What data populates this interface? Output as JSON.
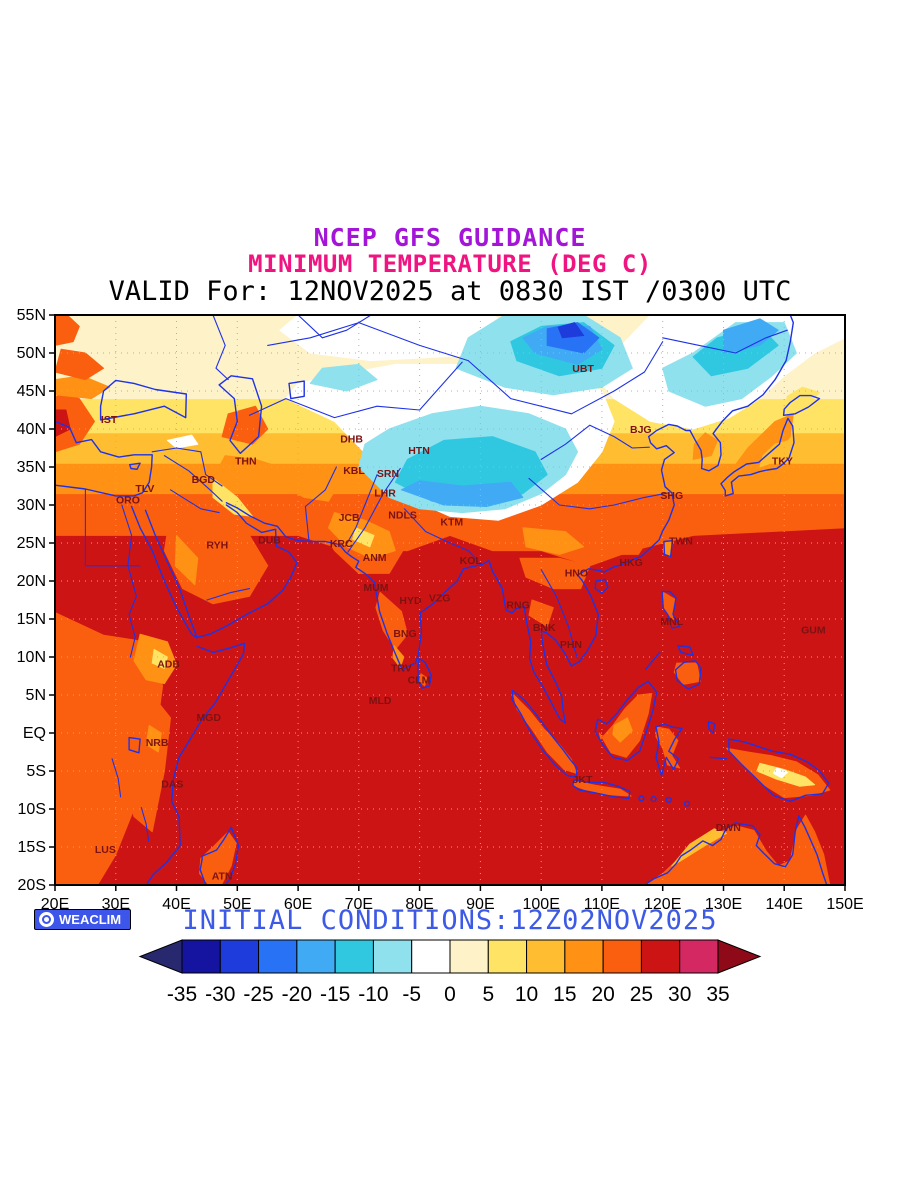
{
  "titles": {
    "line1": "NCEP GFS GUIDANCE",
    "line2": "MINIMUM TEMPERATURE (DEG C)",
    "line3": "VALID For: 12NOV2025 at 0830 IST /0300 UTC"
  },
  "colors": {
    "title1": "#a316d8",
    "title2": "#ef1480",
    "title3": "#000000",
    "initial_conditions": "#3c5ae6",
    "coastline": "#1e32e6",
    "grid": "#b0b0b0",
    "station_label": "#7d1212",
    "axis_label": "#000000",
    "frame": "#000000",
    "badge_bg": "#3d55e8"
  },
  "axes": {
    "lat_labels": [
      "55N",
      "50N",
      "45N",
      "40N",
      "35N",
      "30N",
      "25N",
      "20N",
      "15N",
      "10N",
      "5N",
      "EQ",
      "5S",
      "10S",
      "15S",
      "20S"
    ],
    "lat_values": [
      55,
      50,
      45,
      40,
      35,
      30,
      25,
      20,
      15,
      10,
      5,
      0,
      -5,
      -10,
      -15,
      -20
    ],
    "lon_labels": [
      "20E",
      "30E",
      "40E",
      "50E",
      "60E",
      "70E",
      "80E",
      "90E",
      "100E",
      "110E",
      "120E",
      "130E",
      "140E",
      "150E"
    ],
    "lon_values": [
      20,
      30,
      40,
      50,
      60,
      70,
      80,
      90,
      100,
      110,
      120,
      130,
      140,
      150
    ],
    "lon_range": [
      20,
      150
    ],
    "lat_range": [
      -20,
      55
    ]
  },
  "colorbar": {
    "tick_labels": [
      "-35",
      "-30",
      "-25",
      "-20",
      "-15",
      "-10",
      "-5",
      "0",
      "5",
      "10",
      "15",
      "20",
      "25",
      "30",
      "35"
    ],
    "segments": [
      "#28286e",
      "#1414a0",
      "#1e3cdc",
      "#2873f5",
      "#41aaf5",
      "#30c8e1",
      "#8fe1ee",
      "#ffffff",
      "#fdf2c8",
      "#ffe364",
      "#ffbe32",
      "#ff9114",
      "#fa5f0f",
      "#cd1414",
      "#d42862",
      "#8f0a19"
    ]
  },
  "branding": {
    "logo_text": "WEACLIM"
  },
  "footer": {
    "initial_conditions": "INITIAL CONDITIONS:12Z02NOV2025"
  },
  "stations": [
    {
      "label": "IST",
      "lon": 28.9,
      "lat": 41.2
    },
    {
      "label": "THN",
      "lon": 51.4,
      "lat": 35.7
    },
    {
      "label": "TLV",
      "lon": 34.8,
      "lat": 32.1
    },
    {
      "label": "BGD",
      "lon": 44.4,
      "lat": 33.3
    },
    {
      "label": "ORO",
      "lon": 32.0,
      "lat": 30.6
    },
    {
      "label": "RYH",
      "lon": 46.7,
      "lat": 24.7
    },
    {
      "label": "DUB",
      "lon": 55.3,
      "lat": 25.3
    },
    {
      "label": "DHB",
      "lon": 68.8,
      "lat": 38.6
    },
    {
      "label": "KBL",
      "lon": 69.2,
      "lat": 34.5
    },
    {
      "label": "SRN",
      "lon": 74.8,
      "lat": 34.1
    },
    {
      "label": "LHR",
      "lon": 74.3,
      "lat": 31.5
    },
    {
      "label": "JCB",
      "lon": 68.4,
      "lat": 28.3
    },
    {
      "label": "NDLS",
      "lon": 77.2,
      "lat": 28.6
    },
    {
      "label": "KRC",
      "lon": 67.1,
      "lat": 24.9
    },
    {
      "label": "ANM",
      "lon": 72.6,
      "lat": 23.0
    },
    {
      "label": "MUM",
      "lon": 72.8,
      "lat": 19.1
    },
    {
      "label": "HYD",
      "lon": 78.5,
      "lat": 17.4
    },
    {
      "label": "VZG",
      "lon": 83.3,
      "lat": 17.7
    },
    {
      "label": "KOL",
      "lon": 88.4,
      "lat": 22.6
    },
    {
      "label": "KTM",
      "lon": 85.3,
      "lat": 27.7
    },
    {
      "label": "HTN",
      "lon": 79.9,
      "lat": 37.1
    },
    {
      "label": "UBT",
      "lon": 106.9,
      "lat": 47.9
    },
    {
      "label": "BJG",
      "lon": 116.4,
      "lat": 39.9
    },
    {
      "label": "SHG",
      "lon": 121.5,
      "lat": 31.2
    },
    {
      "label": "TKY",
      "lon": 139.7,
      "lat": 35.7
    },
    {
      "label": "TWN",
      "lon": 123.0,
      "lat": 25.2
    },
    {
      "label": "HKG",
      "lon": 114.8,
      "lat": 22.4
    },
    {
      "label": "HNO",
      "lon": 105.8,
      "lat": 21.0
    },
    {
      "label": "RNG",
      "lon": 96.2,
      "lat": 16.8
    },
    {
      "label": "BNK",
      "lon": 100.5,
      "lat": 13.8
    },
    {
      "label": "PHN",
      "lon": 104.9,
      "lat": 11.6
    },
    {
      "label": "MNL",
      "lon": 121.5,
      "lat": 14.6
    },
    {
      "label": "GUM",
      "lon": 144.8,
      "lat": 13.5
    },
    {
      "label": "BNG",
      "lon": 77.6,
      "lat": 13.0
    },
    {
      "label": "TRV",
      "lon": 77.0,
      "lat": 8.5
    },
    {
      "label": "CLM",
      "lon": 79.9,
      "lat": 6.9
    },
    {
      "label": "MLD",
      "lon": 73.5,
      "lat": 4.2
    },
    {
      "label": "ADB",
      "lon": 38.7,
      "lat": 9.0
    },
    {
      "label": "MGD",
      "lon": 45.3,
      "lat": 2.0
    },
    {
      "label": "NRB",
      "lon": 36.8,
      "lat": -1.3
    },
    {
      "label": "DAS",
      "lon": 39.3,
      "lat": -6.8
    },
    {
      "label": "LUS",
      "lon": 28.3,
      "lat": -15.4
    },
    {
      "label": "ATN",
      "lon": 47.5,
      "lat": -18.9
    },
    {
      "label": "JKT",
      "lon": 106.8,
      "lat": -6.2
    },
    {
      "label": "DWN",
      "lon": 130.8,
      "lat": -12.5
    }
  ]
}
